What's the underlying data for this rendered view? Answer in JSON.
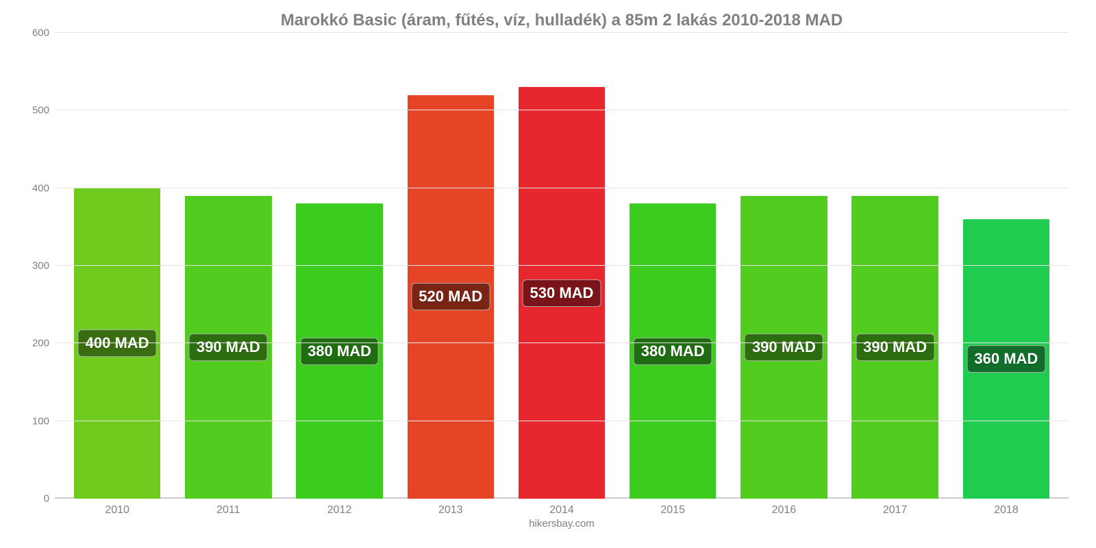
{
  "chart": {
    "type": "bar",
    "title": "Marokkó Basic (áram, fűtés, víz, hulladék) a 85m 2 lakás 2010-2018 MAD",
    "title_fontsize": 24,
    "title_color": "#808080",
    "background_color": "#ffffff",
    "grid_color": "#e6e6e6",
    "axis_label_color": "#808080",
    "axis_label_fontsize": 15,
    "ylim": [
      0,
      600
    ],
    "ytick_step": 100,
    "yticks": [
      0,
      100,
      200,
      300,
      400,
      500,
      600
    ],
    "bar_width": 0.78,
    "label_fontsize": 22,
    "categories": [
      "2010",
      "2011",
      "2012",
      "2013",
      "2014",
      "2015",
      "2016",
      "2017",
      "2018"
    ],
    "values": [
      400,
      390,
      380,
      520,
      530,
      380,
      390,
      390,
      360
    ],
    "value_labels": [
      "400 MAD",
      "390 MAD",
      "380 MAD",
      "520 MAD",
      "530 MAD",
      "380 MAD",
      "390 MAD",
      "390 MAD",
      "360 MAD"
    ],
    "bar_colors": [
      "#6fcc1f",
      "#52cc1f",
      "#3bcc1f",
      "#e64427",
      "#e6272e",
      "#3bcc1f",
      "#52cc1f",
      "#52cc1f",
      "#1fcc4f"
    ],
    "label_bg_colors": [
      "#3a6d10",
      "#2c6d10",
      "#1f6d10",
      "#7a2414",
      "#7a1418",
      "#1f6d10",
      "#2c6d10",
      "#2c6d10",
      "#106d2a"
    ],
    "credit": "hikersbay.com"
  }
}
